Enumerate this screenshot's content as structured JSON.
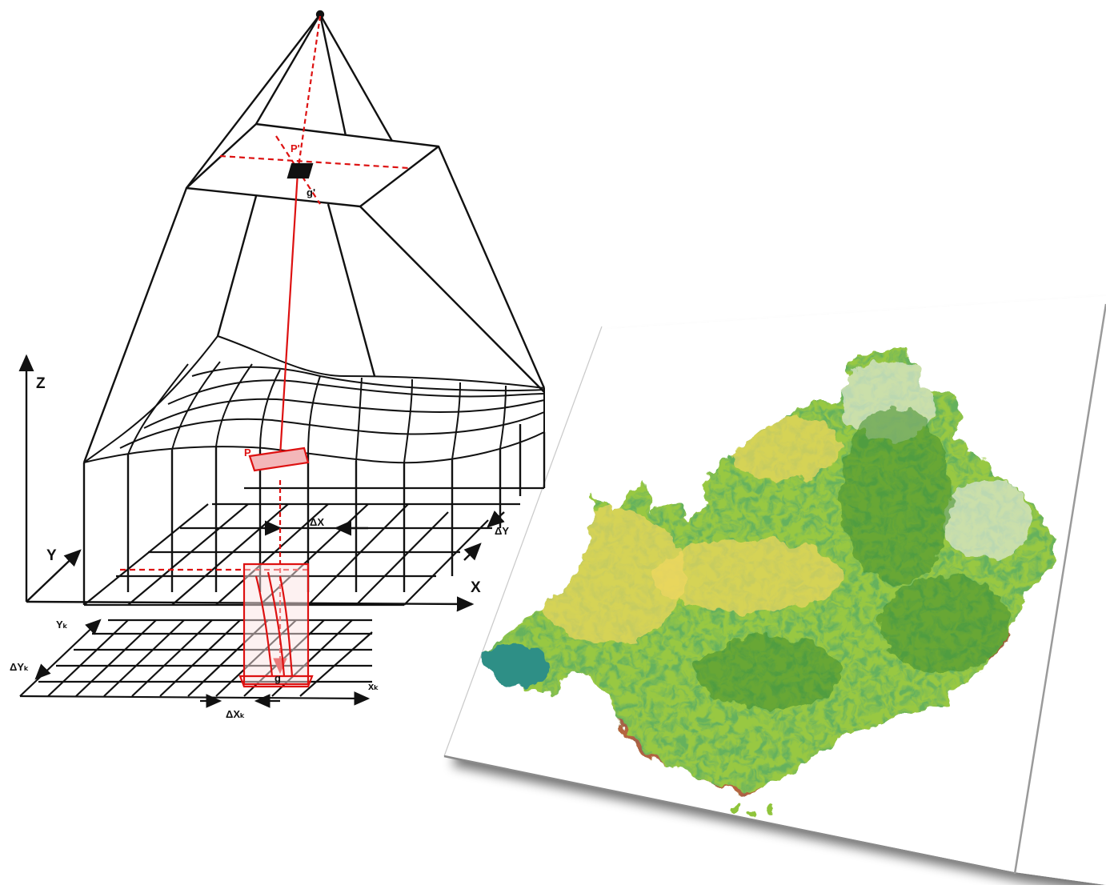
{
  "diagram": {
    "axes": {
      "z": "Z",
      "y": "Y",
      "x": "X",
      "delta_x": "ΔX",
      "delta_y": "ΔY"
    },
    "image_plane": {
      "point_p": "P'",
      "point_g": "g'"
    },
    "surface": {
      "point_p": "P"
    },
    "grid_plane": {
      "yk": "Yₖ",
      "xk": "xₖ",
      "delta_yk": "ΔYₖ",
      "delta_xk": "ΔXₖ",
      "g": "g"
    }
  },
  "map": {
    "palette": {
      "forest": "#3f8c2a",
      "grassland": "#8fc43a",
      "light_vegetation": "#c8df7a",
      "agriculture": "#f0d760",
      "urban": "#c23a3f",
      "water": "#2f8f86",
      "sparse": "#dfe8d6"
    }
  }
}
